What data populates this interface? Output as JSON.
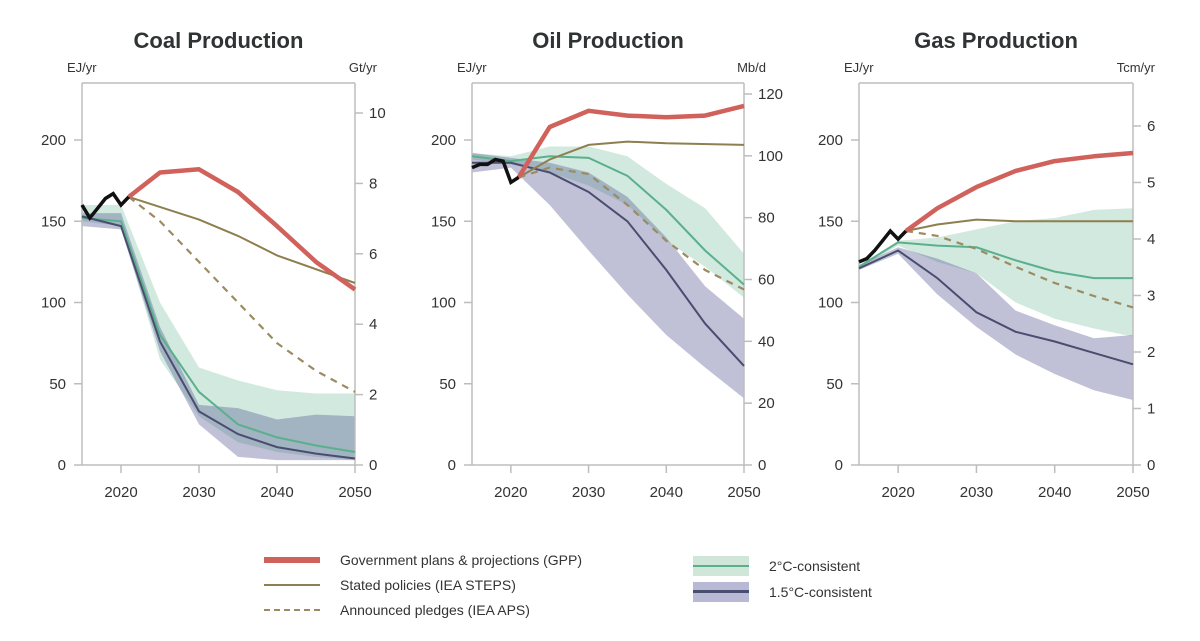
{
  "colors": {
    "gpp": "#d1615b",
    "steps": "#8e7f4f",
    "aps": "#9c8b62",
    "historical": "#111111",
    "c2_line": "#5bb08c",
    "c2_band": "#cfe6d8",
    "c15_line": "#4b4d70",
    "c15_band": "#b8b9d5",
    "axis": "#bdbdbd",
    "text": "#333333"
  },
  "legend": {
    "gpp": "Government plans & projections (GPP)",
    "steps": "Stated policies (IEA STEPS)",
    "aps": "Announced pledges (IEA APS)",
    "c2": "2°C-consistent",
    "c15": "1.5°C-consistent"
  },
  "chart_data": [
    {
      "type": "line",
      "title": "Coal Production",
      "ylabel_left": "EJ/yr",
      "ylabel_right": "Gt/yr",
      "xlim": [
        2015,
        2050
      ],
      "ylim": [
        0,
        235
      ],
      "x_ticks": [
        2020,
        2030,
        2040,
        2050
      ],
      "y_ticks_left": [
        0,
        50,
        100,
        150,
        200
      ],
      "y_ticks_right": [
        0,
        2,
        4,
        6,
        8,
        10
      ],
      "ej_per_right_unit": 21.66,
      "grid": false,
      "historical": {
        "x": [
          2015,
          2016,
          2017,
          2018,
          2019,
          2020,
          2021
        ],
        "y": [
          160,
          152,
          158,
          164,
          167,
          160,
          165
        ]
      },
      "gpp": {
        "x": [
          2021,
          2025,
          2030,
          2035,
          2040,
          2045,
          2050
        ],
        "y": [
          165,
          180,
          182,
          168,
          147,
          125,
          108
        ]
      },
      "steps": {
        "x": [
          2021,
          2030,
          2035,
          2040,
          2050
        ],
        "y": [
          165,
          151,
          141,
          129,
          112
        ]
      },
      "aps": {
        "x": [
          2021,
          2025,
          2030,
          2035,
          2040,
          2045,
          2050
        ],
        "y": [
          165,
          150,
          125,
          100,
          75,
          58,
          45
        ]
      },
      "c2": {
        "x": [
          2015,
          2020,
          2025,
          2030,
          2035,
          2040,
          2045,
          2050
        ],
        "median": [
          152,
          150,
          80,
          45,
          25,
          17,
          12,
          8
        ],
        "upper": [
          160,
          160,
          100,
          60,
          52,
          46,
          44,
          44
        ],
        "lower": [
          150,
          147,
          65,
          30,
          14,
          8,
          5,
          3
        ]
      },
      "c15": {
        "x": [
          2015,
          2020,
          2025,
          2030,
          2035,
          2040,
          2045,
          2050
        ],
        "median": [
          153,
          147,
          76,
          33,
          19,
          11,
          7,
          4
        ],
        "upper": [
          155,
          155,
          85,
          37,
          35,
          28,
          31,
          30
        ],
        "lower": [
          147,
          145,
          70,
          25,
          5,
          3,
          3,
          3
        ]
      }
    },
    {
      "type": "line",
      "title": "Oil Production",
      "ylabel_left": "EJ/yr",
      "ylabel_right": "Mb/d",
      "xlim": [
        2015,
        2050
      ],
      "ylim": [
        0,
        235
      ],
      "x_ticks": [
        2020,
        2030,
        2040,
        2050
      ],
      "y_ticks_left": [
        0,
        50,
        100,
        150,
        200
      ],
      "y_ticks_right": [
        0,
        20,
        40,
        60,
        80,
        100,
        120
      ],
      "ej_per_right_unit": 1.9025,
      "grid": false,
      "historical": {
        "x": [
          2015,
          2016,
          2017,
          2018,
          2019,
          2020,
          2021
        ],
        "y": [
          183,
          185,
          185,
          188,
          187,
          174,
          177
        ]
      },
      "gpp": {
        "x": [
          2021,
          2025,
          2030,
          2035,
          2040,
          2045,
          2050
        ],
        "y": [
          177,
          208,
          218,
          215,
          214,
          215,
          221
        ]
      },
      "steps": {
        "x": [
          2021,
          2025,
          2030,
          2035,
          2040,
          2050
        ],
        "y": [
          177,
          188,
          197,
          199,
          198,
          197
        ]
      },
      "aps": {
        "x": [
          2021,
          2025,
          2030,
          2035,
          2040,
          2045,
          2050
        ],
        "y": [
          177,
          183,
          179,
          160,
          138,
          120,
          108
        ]
      },
      "c2": {
        "x": [
          2015,
          2020,
          2025,
          2030,
          2035,
          2040,
          2045,
          2050
        ],
        "median": [
          190,
          187,
          190,
          189,
          178,
          157,
          132,
          111
        ],
        "upper": [
          192,
          190,
          196,
          196,
          190,
          173,
          158,
          130
        ],
        "lower": [
          188,
          185,
          180,
          172,
          160,
          138,
          122,
          103
        ]
      },
      "c15": {
        "x": [
          2015,
          2020,
          2025,
          2030,
          2035,
          2040,
          2045,
          2050
        ],
        "median": [
          186,
          186,
          180,
          168,
          150,
          120,
          87,
          61
        ],
        "upper": [
          192,
          189,
          186,
          180,
          165,
          140,
          110,
          90
        ],
        "lower": [
          180,
          183,
          160,
          132,
          105,
          80,
          60,
          41
        ]
      }
    },
    {
      "type": "line",
      "title": "Gas Production",
      "ylabel_left": "EJ/yr",
      "ylabel_right": "Tcm/yr",
      "xlim": [
        2015,
        2050
      ],
      "ylim": [
        0,
        235
      ],
      "x_ticks": [
        2020,
        2030,
        2040,
        2050
      ],
      "y_ticks_left": [
        0,
        50,
        100,
        150,
        200
      ],
      "y_ticks_right": [
        0,
        1,
        2,
        3,
        4,
        5,
        6
      ],
      "ej_per_right_unit": 34.77,
      "grid": false,
      "historical": {
        "x": [
          2015,
          2016,
          2017,
          2018,
          2019,
          2020,
          2021
        ],
        "y": [
          125,
          127,
          132,
          138,
          144,
          139,
          144
        ]
      },
      "gpp": {
        "x": [
          2021,
          2025,
          2030,
          2035,
          2040,
          2045,
          2050
        ],
        "y": [
          144,
          158,
          171,
          181,
          187,
          190,
          192
        ]
      },
      "steps": {
        "x": [
          2021,
          2025,
          2030,
          2035,
          2040,
          2050
        ],
        "y": [
          144,
          148,
          151,
          150,
          150,
          150
        ]
      },
      "aps": {
        "x": [
          2021,
          2025,
          2030,
          2035,
          2040,
          2045,
          2050
        ],
        "y": [
          144,
          141,
          133,
          122,
          112,
          104,
          97
        ]
      },
      "c2": {
        "x": [
          2015,
          2020,
          2025,
          2030,
          2035,
          2040,
          2045,
          2050
        ],
        "median": [
          122,
          137,
          135,
          134,
          126,
          119,
          115,
          115
        ],
        "upper": [
          123,
          138,
          140,
          145,
          150,
          152,
          157,
          158
        ],
        "lower": [
          121,
          135,
          125,
          118,
          100,
          90,
          84,
          79
        ]
      },
      "c15": {
        "x": [
          2015,
          2020,
          2025,
          2030,
          2035,
          2040,
          2045,
          2050
        ],
        "median": [
          121,
          132,
          115,
          94,
          82,
          76,
          69,
          62
        ],
        "upper": [
          123,
          134,
          127,
          118,
          95,
          86,
          78,
          80
        ],
        "lower": [
          120,
          130,
          105,
          85,
          68,
          56,
          46,
          40
        ]
      }
    }
  ]
}
